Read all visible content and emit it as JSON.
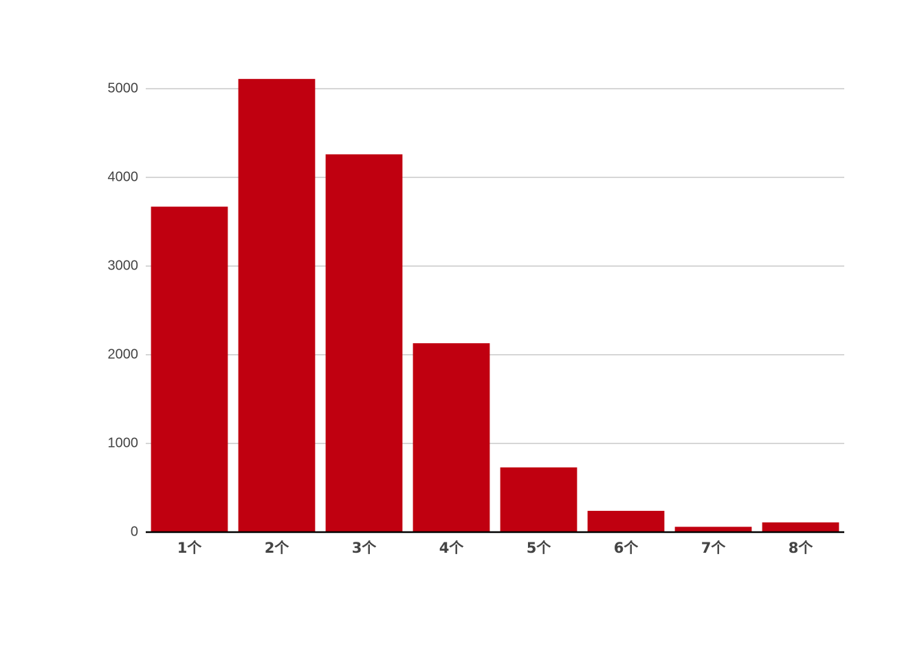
{
  "chart_data": {
    "type": "bar",
    "categories": [
      "1个",
      "2个",
      "3个",
      "4个",
      "5个",
      "6个",
      "7个",
      "8个"
    ],
    "values": [
      3670,
      5110,
      4260,
      2130,
      730,
      240,
      60,
      110
    ],
    "color": "#c00010",
    "ylim": [
      0,
      5300
    ],
    "yticks": [
      0,
      1000,
      2000,
      3000,
      4000,
      5000
    ],
    "grid": true
  }
}
